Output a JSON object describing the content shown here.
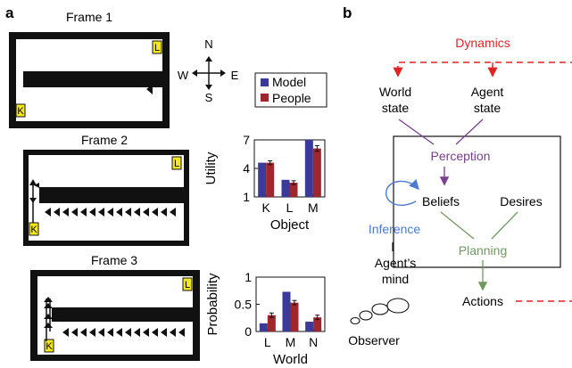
{
  "panel_a": {
    "label": "a",
    "frames": [
      {
        "title": "Frame 1"
      },
      {
        "title": "Frame 2"
      },
      {
        "title": "Frame 3"
      }
    ],
    "trucks": {
      "K": "K",
      "L": "L"
    },
    "compass": {
      "n": "N",
      "s": "S",
      "w": "W",
      "e": "E"
    },
    "legend": {
      "model": "Model",
      "people": "People"
    },
    "colors": {
      "model": "#3a3a9a",
      "people": "#a0262e",
      "truck": "#f2e81b",
      "wall": "#111111"
    }
  },
  "panel_b": {
    "label": "b",
    "dynamics": "Dynamics",
    "world_state": [
      "World",
      "state"
    ],
    "agent_state": [
      "Agent",
      "state"
    ],
    "perception": "Perception",
    "beliefs": "Beliefs",
    "desires": "Desires",
    "inference": "Inference",
    "planning": "Planning",
    "agents_mind": [
      "Agent’s",
      "mind"
    ],
    "actions": "Actions",
    "observer": "Observer",
    "colors": {
      "dynamics": "#e02424",
      "perception": "#7a3d8f",
      "inference": "#4a7bd0",
      "planning": "#6e9a5e"
    }
  },
  "chart_data": [
    {
      "type": "bar",
      "ylabel": "Utility",
      "xlabel": "Object",
      "categories": [
        "K",
        "L",
        "M"
      ],
      "yticks": [
        1,
        4,
        7
      ],
      "ylim": [
        1,
        7
      ],
      "series": [
        {
          "name": "Model",
          "values": [
            4.6,
            2.8,
            7.0
          ],
          "errors": [
            0,
            0,
            0
          ]
        },
        {
          "name": "People",
          "values": [
            4.6,
            2.5,
            6.1
          ],
          "errors": [
            0.2,
            0.2,
            0.3
          ]
        }
      ]
    },
    {
      "type": "bar",
      "ylabel": "Probability",
      "xlabel": "World",
      "categories": [
        "L",
        "M",
        "N"
      ],
      "yticks": [
        0,
        0.5,
        1
      ],
      "ylim": [
        0,
        1
      ],
      "series": [
        {
          "name": "Model",
          "values": [
            0.15,
            0.73,
            0.18
          ],
          "errors": [
            0,
            0,
            0
          ]
        },
        {
          "name": "People",
          "values": [
            0.3,
            0.53,
            0.26
          ],
          "errors": [
            0.04,
            0.04,
            0.04
          ]
        }
      ]
    }
  ]
}
